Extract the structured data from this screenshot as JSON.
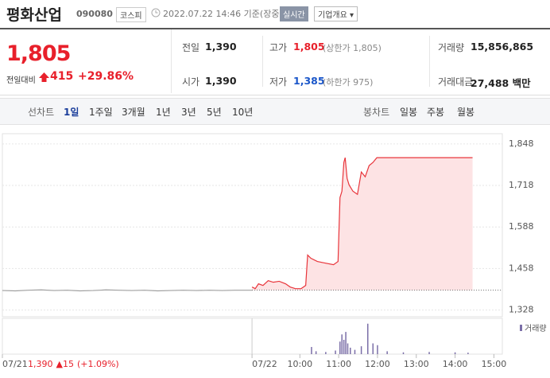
{
  "header": {
    "name": "평화산업",
    "code": "090080",
    "market": "코스피",
    "time": "2022.07.22 14:46 기준(장중)",
    "realtime": "실시간",
    "overview": "기업개요"
  },
  "quote": {
    "price": "1,805",
    "change_label": "전일대비",
    "change": "415",
    "rate": "+29.86%",
    "stats": [
      {
        "label": "전일",
        "value": "1,390"
      },
      {
        "label": "고가",
        "value": "1,805",
        "note": "(상한가 1,805)"
      },
      {
        "label": "거래량",
        "value": "15,856,865"
      },
      {
        "label": "시가",
        "value": "1,390"
      },
      {
        "label": "저가",
        "value": "1,385",
        "note": "(하한가 975)"
      },
      {
        "label": "거래대금",
        "value": "27,488 백만"
      }
    ]
  },
  "tabs": {
    "line_label": "선차트",
    "line": [
      "1일",
      "1주일",
      "3개월",
      "1년",
      "3년",
      "5년",
      "10년"
    ],
    "candle_label": "봉차트",
    "candle": [
      "일봉",
      "주봉",
      "월봉"
    ]
  },
  "chart_data": {
    "type": "line",
    "series": [
      {
        "color": "#a0a0a0",
        "x": [
          140,
          160,
          180,
          200,
          220,
          240,
          260,
          280,
          300,
          320,
          340,
          360,
          380,
          400,
          420,
          440,
          460,
          480,
          500,
          526
        ],
        "values": [
          1389,
          1388,
          1390,
          1391,
          1389,
          1390,
          1388,
          1389,
          1391,
          1390,
          1389,
          1390,
          1388,
          1389,
          1390,
          1389,
          1390,
          1389,
          1390,
          1390
        ]
      },
      {
        "color": "#e8353b",
        "fill": "#fde3e4",
        "x": [
          526,
          531,
          536,
          543,
          551,
          559,
          568,
          578,
          585,
          593,
          602,
          609,
          612,
          617,
          627,
          639,
          652,
          659,
          662,
          665,
          668,
          670,
          673,
          676,
          682,
          689,
          695,
          701,
          707,
          713,
          719,
          867
        ],
        "values": [
          1400,
          1395,
          1410,
          1405,
          1420,
          1415,
          1418,
          1410,
          1400,
          1395,
          1395,
          1405,
          1500,
          1490,
          1480,
          1475,
          1470,
          1480,
          1680,
          1700,
          1790,
          1805,
          1740,
          1720,
          1700,
          1690,
          1760,
          1745,
          1780,
          1790,
          1805,
          1805
        ]
      }
    ],
    "baseline": 1390,
    "volume": {
      "name": "거래량",
      "color": "#7b6fa8",
      "ylim": [
        0,
        100
      ],
      "x": [
        618,
        625,
        640,
        655,
        662,
        665,
        668,
        671,
        674,
        678,
        685,
        695,
        705,
        713,
        720,
        735,
        760,
        800,
        840,
        860
      ],
      "values": [
        20,
        8,
        6,
        10,
        35,
        55,
        40,
        62,
        30,
        18,
        12,
        22,
        85,
        30,
        25,
        8,
        5,
        6,
        5,
        4
      ]
    },
    "xlim": [
      140,
      913
    ],
    "xticks": [
      {
        "value": 140,
        "label": "07/21"
      },
      {
        "value": 526,
        "label": "07/22"
      },
      {
        "value": 600,
        "label": "10:00"
      },
      {
        "value": 660,
        "label": "11:00"
      },
      {
        "value": 720,
        "label": "12:00"
      },
      {
        "value": 780,
        "label": "13:00"
      },
      {
        "value": 840,
        "label": "14:00"
      },
      {
        "value": 900,
        "label": "15:00"
      }
    ],
    "ylim": [
      1307,
      1880
    ],
    "yticks": [
      {
        "value": 1328,
        "label": "1,328"
      },
      {
        "value": 1458,
        "label": "1,458"
      },
      {
        "value": 1588,
        "label": "1,588"
      },
      {
        "value": 1718,
        "label": "1,718"
      },
      {
        "value": 1848,
        "label": "1,848"
      }
    ],
    "grid": true,
    "footer": {
      "price": "1,390",
      "change": "▲15",
      "rate": "(+1.09%)"
    }
  }
}
